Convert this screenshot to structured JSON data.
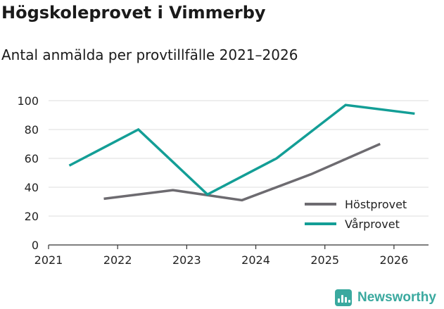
{
  "title": "Högskoleprovet i Vimmerby",
  "subtitle": "Antal anmälda per provtillfälle 2021–2026",
  "brand": {
    "name": "Newsworthy",
    "icon": "newsworthy-logo-icon"
  },
  "colors": {
    "series_0": "#6d6b70",
    "series_1": "#139e96",
    "grid": "#dcdcdc",
    "axis": "#333333",
    "brand": "#3aa99f"
  },
  "chart_data": {
    "type": "line",
    "ylim": [
      0,
      100
    ],
    "yticks": [
      "0",
      "20",
      "40",
      "60",
      "80",
      "100"
    ],
    "xlim": [
      2021,
      2026.5
    ],
    "xticks": [
      "2021",
      "2022",
      "2023",
      "2024",
      "2025",
      "2026"
    ],
    "xlabel": "",
    "ylabel": "",
    "legend_position": "bottom-right",
    "series": [
      {
        "name": "Höstprovet",
        "x": [
          2021.8,
          2022.8,
          2023.8,
          2024.8,
          2025.8
        ],
        "values": [
          32,
          38,
          31,
          49,
          70
        ]
      },
      {
        "name": "Vårprovet",
        "x": [
          2021.3,
          2022.3,
          2023.3,
          2024.3,
          2025.3,
          2026.3
        ],
        "values": [
          55,
          80,
          35,
          60,
          97,
          91
        ]
      }
    ]
  }
}
